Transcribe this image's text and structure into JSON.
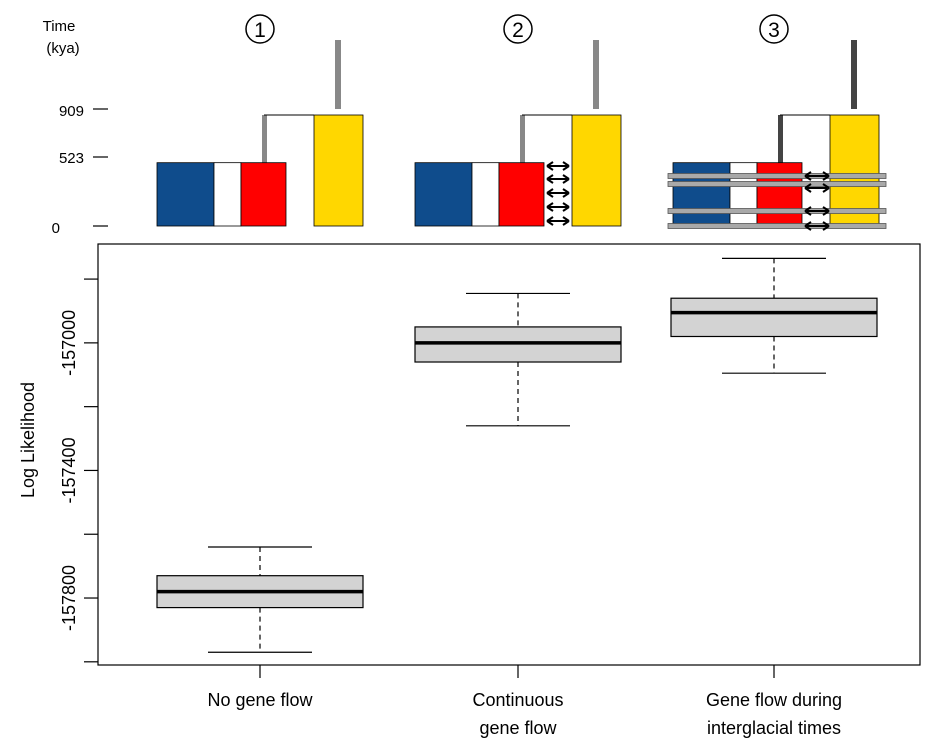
{
  "colors": {
    "blue": "#0f4c8c",
    "red": "#ff0000",
    "yellow": "#ffd700",
    "box_fill": "#d3d3d3",
    "grey_stem": "#888888",
    "dark_stem": "#444444",
    "band": "#a9a9a9"
  },
  "scenarios": [
    {
      "number": "1",
      "symbol": "①",
      "migration": "none"
    },
    {
      "number": "2",
      "symbol": "②",
      "migration": "continuous"
    },
    {
      "number": "3",
      "symbol": "③",
      "migration": "interglacial"
    }
  ],
  "tree_time_axis": {
    "title_line1": "Time",
    "title_line2": "(kya)",
    "ticks": [
      "909",
      "523",
      "0"
    ],
    "tick_values": [
      909,
      523,
      0
    ]
  },
  "chart_data": {
    "type": "boxplot",
    "title": "",
    "xlabel": "",
    "ylabel": "Log Likelihood",
    "categories_line1": [
      "No gene flow",
      "Continuous",
      "Gene flow during"
    ],
    "categories_line2": [
      "",
      "gene flow",
      "interglacial times"
    ],
    "yticks": [
      -157800,
      -157400,
      -157000
    ],
    "ytick_labels": [
      "-157800",
      "-157400",
      "-157000"
    ],
    "ylim": [
      -158010,
      -156690
    ],
    "grid": false,
    "series": [
      {
        "category": "No gene flow",
        "whisker_low": -157970,
        "q1": -157830,
        "median": -157780,
        "q3": -157730,
        "whisker_high": -157640
      },
      {
        "category": "Continuous gene flow",
        "whisker_low": -157260,
        "q1": -157060,
        "median": -157000,
        "q3": -156950,
        "whisker_high": -156845
      },
      {
        "category": "Gene flow during interglacial times",
        "whisker_low": -157095,
        "q1": -156980,
        "median": -156905,
        "q3": -156860,
        "whisker_high": -156735
      }
    ]
  }
}
